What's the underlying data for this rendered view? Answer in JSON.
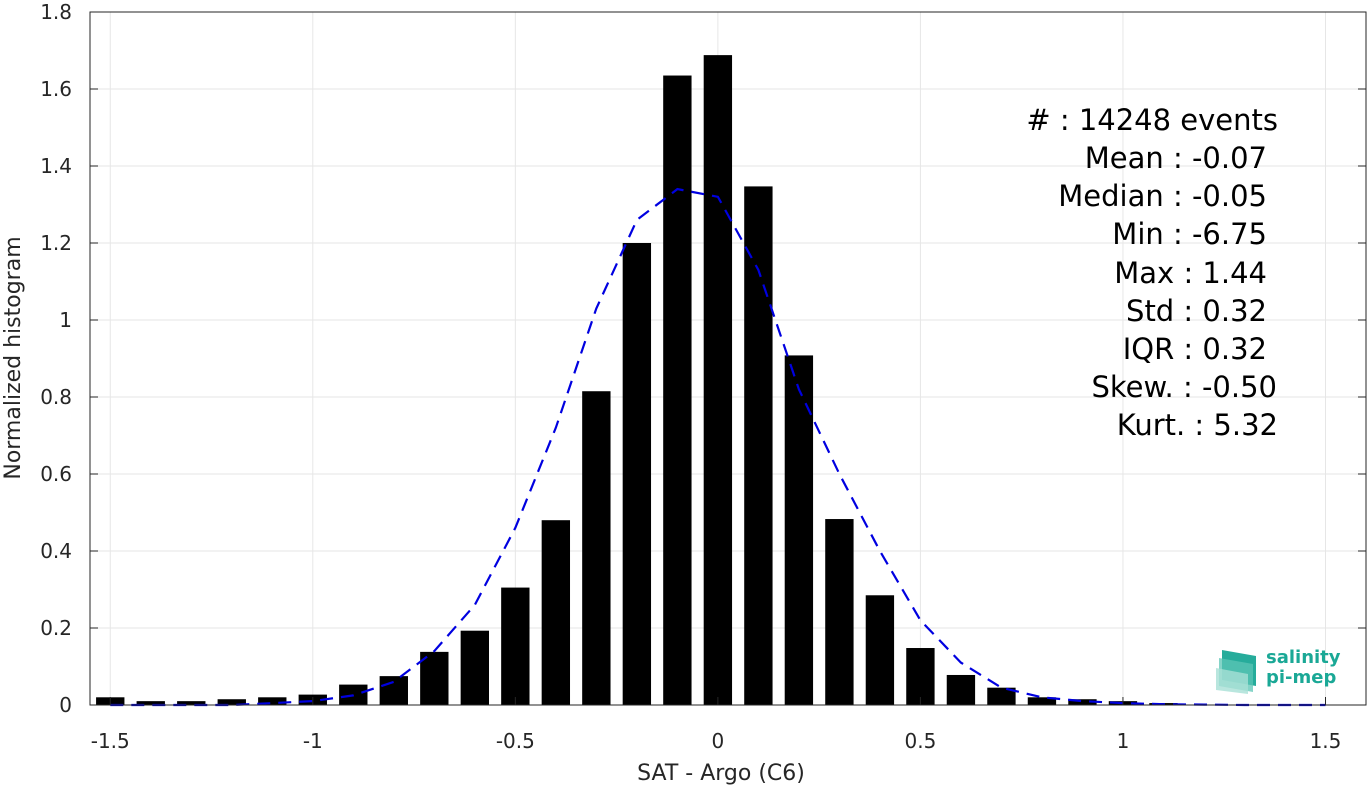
{
  "chart_data": {
    "type": "bar",
    "xlabel": "SAT - Argo (C6)",
    "ylabel": "Normalized histogram",
    "xlim": [
      -1.55,
      1.6
    ],
    "ylim": [
      0,
      1.8
    ],
    "xticks": [
      -1.5,
      -1,
      -0.5,
      0,
      0.5,
      1,
      1.5
    ],
    "xtick_labels": [
      "-1.5",
      "-1",
      "-0.5",
      "0",
      "0.5",
      "1",
      "1.5"
    ],
    "yticks": [
      0,
      0.2,
      0.4,
      0.6,
      0.8,
      1,
      1.2,
      1.4,
      1.6,
      1.8
    ],
    "ytick_labels": [
      "0",
      "0.2",
      "0.4",
      "0.6",
      "0.8",
      "1",
      "1.2",
      "1.4",
      "1.6",
      "1.8"
    ],
    "grid": true,
    "bar_color": "#000000",
    "bin_width": 0.1,
    "bars": {
      "x": [
        -1.5,
        -1.4,
        -1.3,
        -1.2,
        -1.1,
        -1.0,
        -0.9,
        -0.8,
        -0.7,
        -0.6,
        -0.5,
        -0.4,
        -0.3,
        -0.2,
        -0.1,
        0.0,
        0.1,
        0.2,
        0.3,
        0.4,
        0.5,
        0.6,
        0.7,
        0.8,
        0.9,
        1.0,
        1.1
      ],
      "values": [
        0.02,
        0.01,
        0.01,
        0.015,
        0.02,
        0.027,
        0.053,
        0.075,
        0.138,
        0.193,
        0.305,
        0.48,
        0.815,
        1.2,
        1.635,
        1.688,
        1.347,
        0.908,
        0.483,
        0.285,
        0.148,
        0.078,
        0.045,
        0.02,
        0.015,
        0.01,
        0.005
      ]
    },
    "fit_curve": {
      "style": "dashed",
      "color": "#0000e0",
      "x": [
        -1.5,
        -1.4,
        -1.3,
        -1.2,
        -1.1,
        -1.0,
        -0.9,
        -0.8,
        -0.7,
        -0.6,
        -0.5,
        -0.4,
        -0.3,
        -0.2,
        -0.1,
        0.0,
        0.1,
        0.2,
        0.3,
        0.4,
        0.5,
        0.6,
        0.7,
        0.8,
        0.9,
        1.0,
        1.1,
        1.2,
        1.3,
        1.4,
        1.5
      ],
      "values": [
        0.0,
        0.0,
        0.0,
        0.0,
        0.005,
        0.01,
        0.025,
        0.06,
        0.14,
        0.26,
        0.46,
        0.72,
        1.03,
        1.26,
        1.34,
        1.32,
        1.13,
        0.82,
        0.6,
        0.4,
        0.22,
        0.11,
        0.045,
        0.02,
        0.01,
        0.005,
        0.002,
        0.001,
        0.0,
        0.0,
        0.0
      ]
    },
    "annotations": [
      "#  : 14248 events",
      "Mean : -0.07",
      "Median : -0.05",
      "Min : -6.75",
      "Max : 1.44",
      "Std : 0.32",
      "IQR : 0.32",
      "Skew. : -0.50",
      "Kurt. : 5.32"
    ]
  },
  "logo": {
    "line1": "salinity",
    "line2": "pi-mep",
    "color": "#1aa896"
  }
}
